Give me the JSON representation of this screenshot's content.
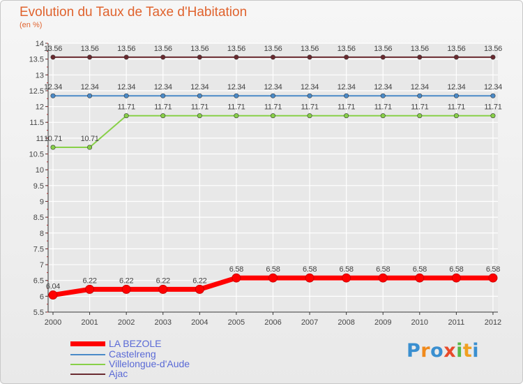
{
  "title": "Evolution du Taux de Taxe d'Habitation",
  "subtitle": "(en %)",
  "colors": {
    "title": "#e0632e",
    "axis": "#333333",
    "grid": "#ffffff",
    "label": "#444444"
  },
  "chart_data": {
    "type": "line",
    "title": "Evolution du Taux de Taxe d'Habitation",
    "ylabel": "(en %)",
    "xlabel": "",
    "x": [
      "2000",
      "2001",
      "2002",
      "2003",
      "2004",
      "2005",
      "2006",
      "2007",
      "2008",
      "2009",
      "2010",
      "2011",
      "2012"
    ],
    "ylim": [
      5.5,
      14
    ],
    "yticks": [
      "5.5",
      "6",
      "6.5",
      "7",
      "7.5",
      "8",
      "8.5",
      "9",
      "9.5",
      "10",
      "10.5",
      "11",
      "11.5",
      "12",
      "12.5",
      "13",
      "13.5",
      "14"
    ],
    "series": [
      {
        "name": "LA BEZOLE",
        "color": "#ff0000",
        "values": [
          6.04,
          6.22,
          6.22,
          6.22,
          6.22,
          6.58,
          6.58,
          6.58,
          6.58,
          6.58,
          6.58,
          6.58,
          6.58
        ],
        "labels": [
          "6.04",
          "6.22",
          "6.22",
          "6.22",
          "6.22",
          "6.58",
          "6.58",
          "6.58",
          "6.58",
          "6.58",
          "6.58",
          "6.58",
          "6.58"
        ]
      },
      {
        "name": "Castelreng",
        "color": "#4a8ac8",
        "values": [
          12.34,
          12.34,
          12.34,
          12.34,
          12.34,
          12.34,
          12.34,
          12.34,
          12.34,
          12.34,
          12.34,
          12.34,
          12.34
        ],
        "labels": [
          "12.34",
          "12.34",
          "12.34",
          "12.34",
          "12.34",
          "12.34",
          "12.34",
          "12.34",
          "12.34",
          "12.34",
          "12.34",
          "12.34",
          "12.34"
        ]
      },
      {
        "name": "Villelongue-d'Aude",
        "color": "#88d048",
        "values": [
          10.71,
          10.71,
          11.71,
          11.71,
          11.71,
          11.71,
          11.71,
          11.71,
          11.71,
          11.71,
          11.71,
          11.71,
          11.71
        ],
        "labels": [
          "10.71",
          "10.71",
          "11.71",
          "11.71",
          "11.71",
          "11.71",
          "11.71",
          "11.71",
          "11.71",
          "11.71",
          "11.71",
          "11.71",
          "11.71"
        ]
      },
      {
        "name": "Ajac",
        "color": "#6a2a30",
        "values": [
          13.56,
          13.56,
          13.56,
          13.56,
          13.56,
          13.56,
          13.56,
          13.56,
          13.56,
          13.56,
          13.56,
          13.56,
          13.56
        ],
        "labels": [
          "13.56",
          "13.56",
          "13.56",
          "13.56",
          "13.56",
          "13.56",
          "13.56",
          "13.56",
          "13.56",
          "13.56",
          "13.56",
          "13.56",
          "13.56"
        ]
      }
    ],
    "legend": "bottom-left"
  },
  "legend": [
    {
      "label": "LA BEZOLE",
      "color": "#ff0000"
    },
    {
      "label": "Castelreng",
      "color": "#4a8ac8"
    },
    {
      "label": "Villelongue-d'Aude",
      "color": "#88d048"
    },
    {
      "label": "Ajac",
      "color": "#6a2a30"
    }
  ],
  "logo": {
    "letters": [
      "P",
      "r",
      "o",
      "x",
      "i",
      "t",
      "i"
    ],
    "colors": [
      "#3a8fd0",
      "#f08a1c",
      "#3a8fd0",
      "#e84a2a",
      "#58b848",
      "#f0a020",
      "#3a8fd0"
    ]
  }
}
